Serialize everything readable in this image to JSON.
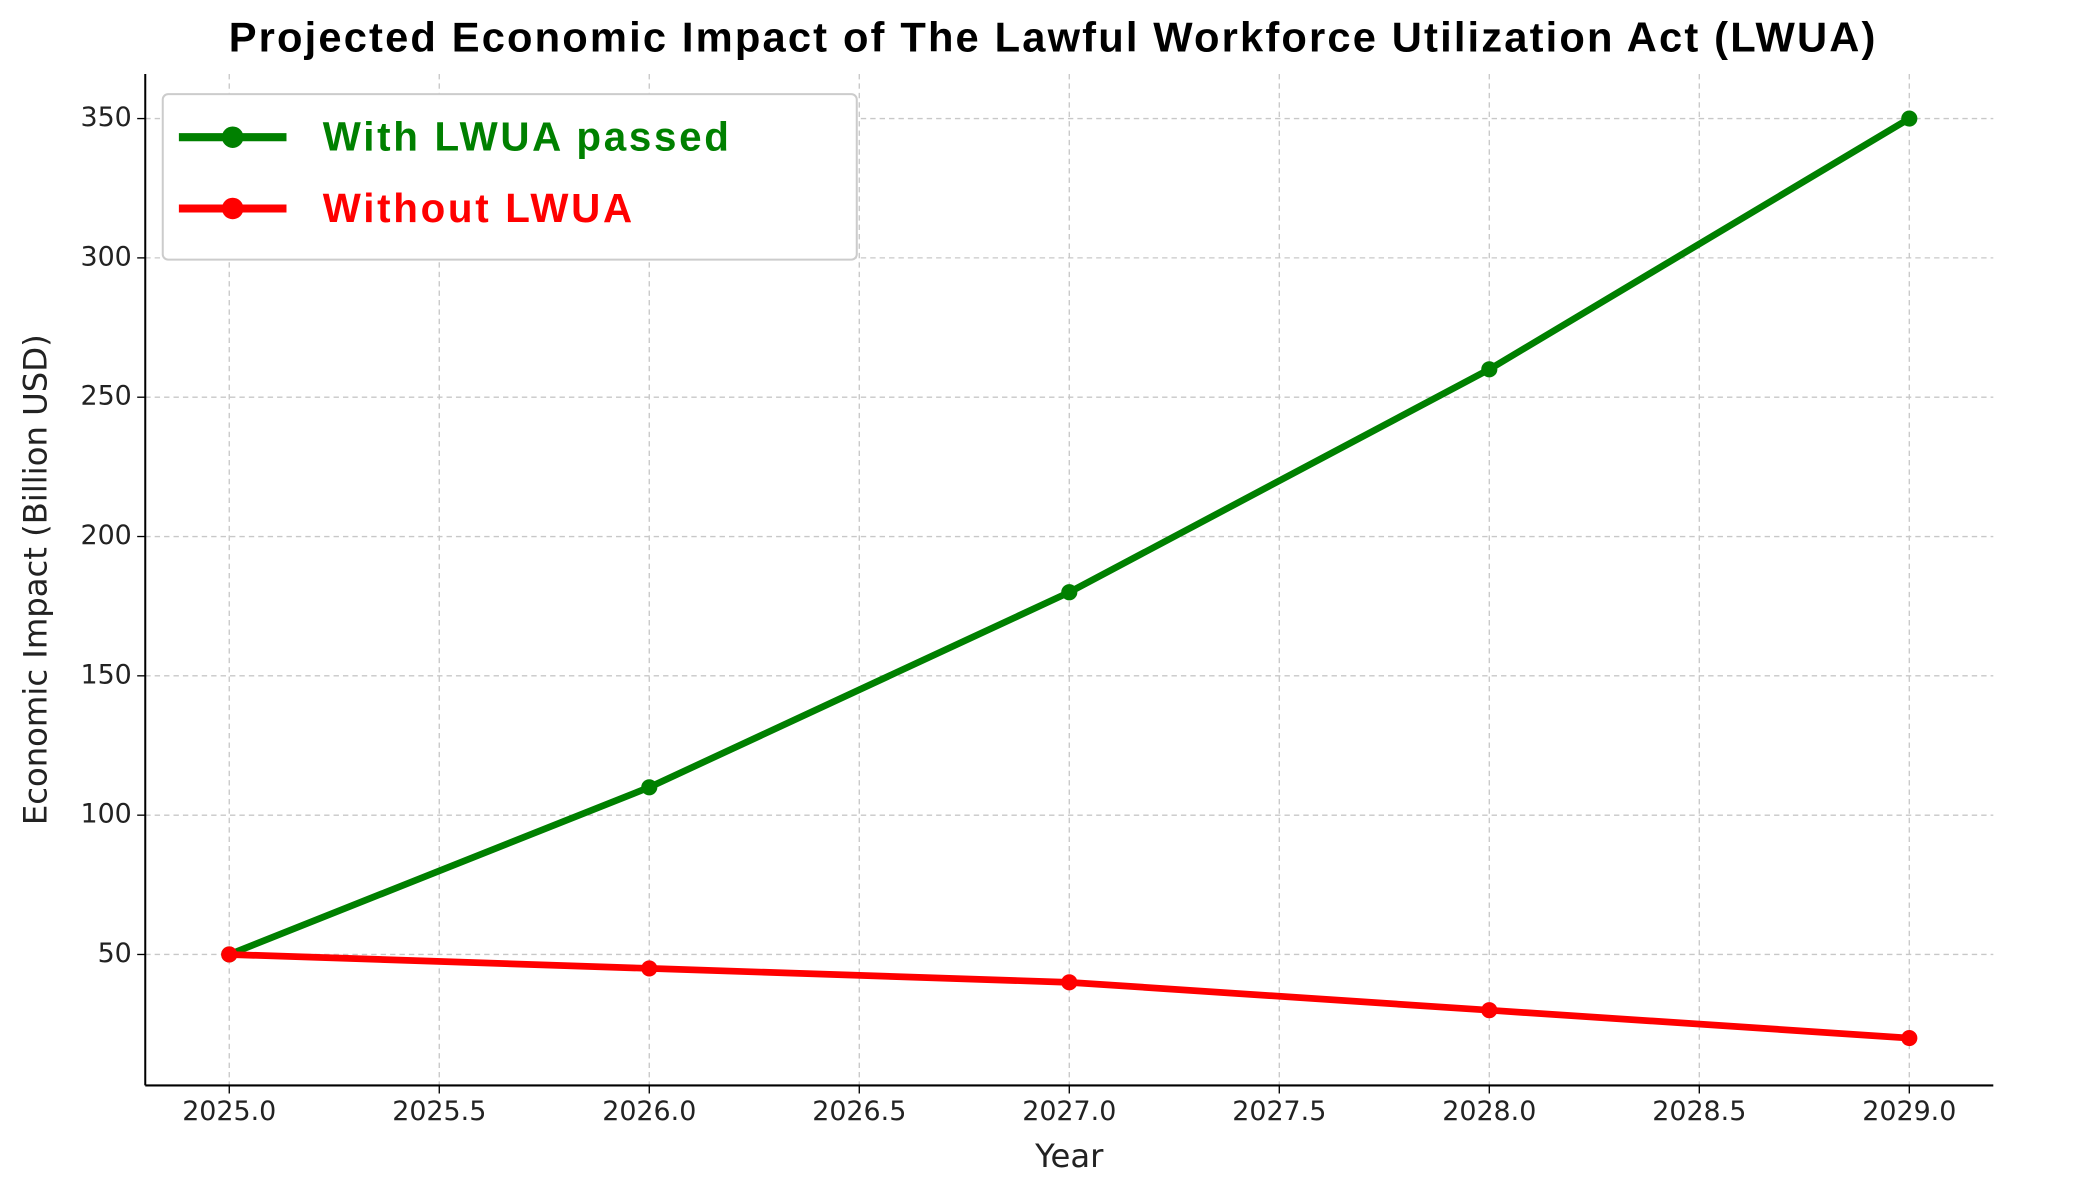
{
  "chart_data": {
    "type": "line",
    "title": "Projected Economic Impact of The Lawful Workforce Utilization Act (LWUA)",
    "x_label": "Year",
    "y_label": "Economic Impact (Billion USD)",
    "x": [
      2025,
      2026,
      2027,
      2028,
      2029
    ],
    "series": [
      {
        "name": "With LWUA passed",
        "color": "#008000",
        "values": [
          50,
          110,
          180,
          260,
          350
        ]
      },
      {
        "name": "Without LWUA",
        "color": "#ff0000",
        "values": [
          50,
          45,
          40,
          30,
          20
        ]
      }
    ],
    "xlim": [
      2024.8,
      2029.2
    ],
    "xticks": [
      {
        "value": 2025,
        "label": "2025.0"
      },
      {
        "value": 2025.5,
        "label": "2025.5"
      },
      {
        "value": 2026,
        "label": "2026.0"
      },
      {
        "value": 2026.5,
        "label": "2026.5"
      },
      {
        "value": 2027,
        "label": "2027.0"
      },
      {
        "value": 2027.5,
        "label": "2027.5"
      },
      {
        "value": 2028,
        "label": "2028.0"
      },
      {
        "value": 2028.5,
        "label": "2028.5"
      },
      {
        "value": 2029,
        "label": "2029.0"
      }
    ],
    "ylim": [
      3,
      366
    ],
    "yticks": [
      50,
      100,
      150,
      200,
      250,
      300,
      350
    ],
    "grid": true,
    "legend": "upper left"
  }
}
